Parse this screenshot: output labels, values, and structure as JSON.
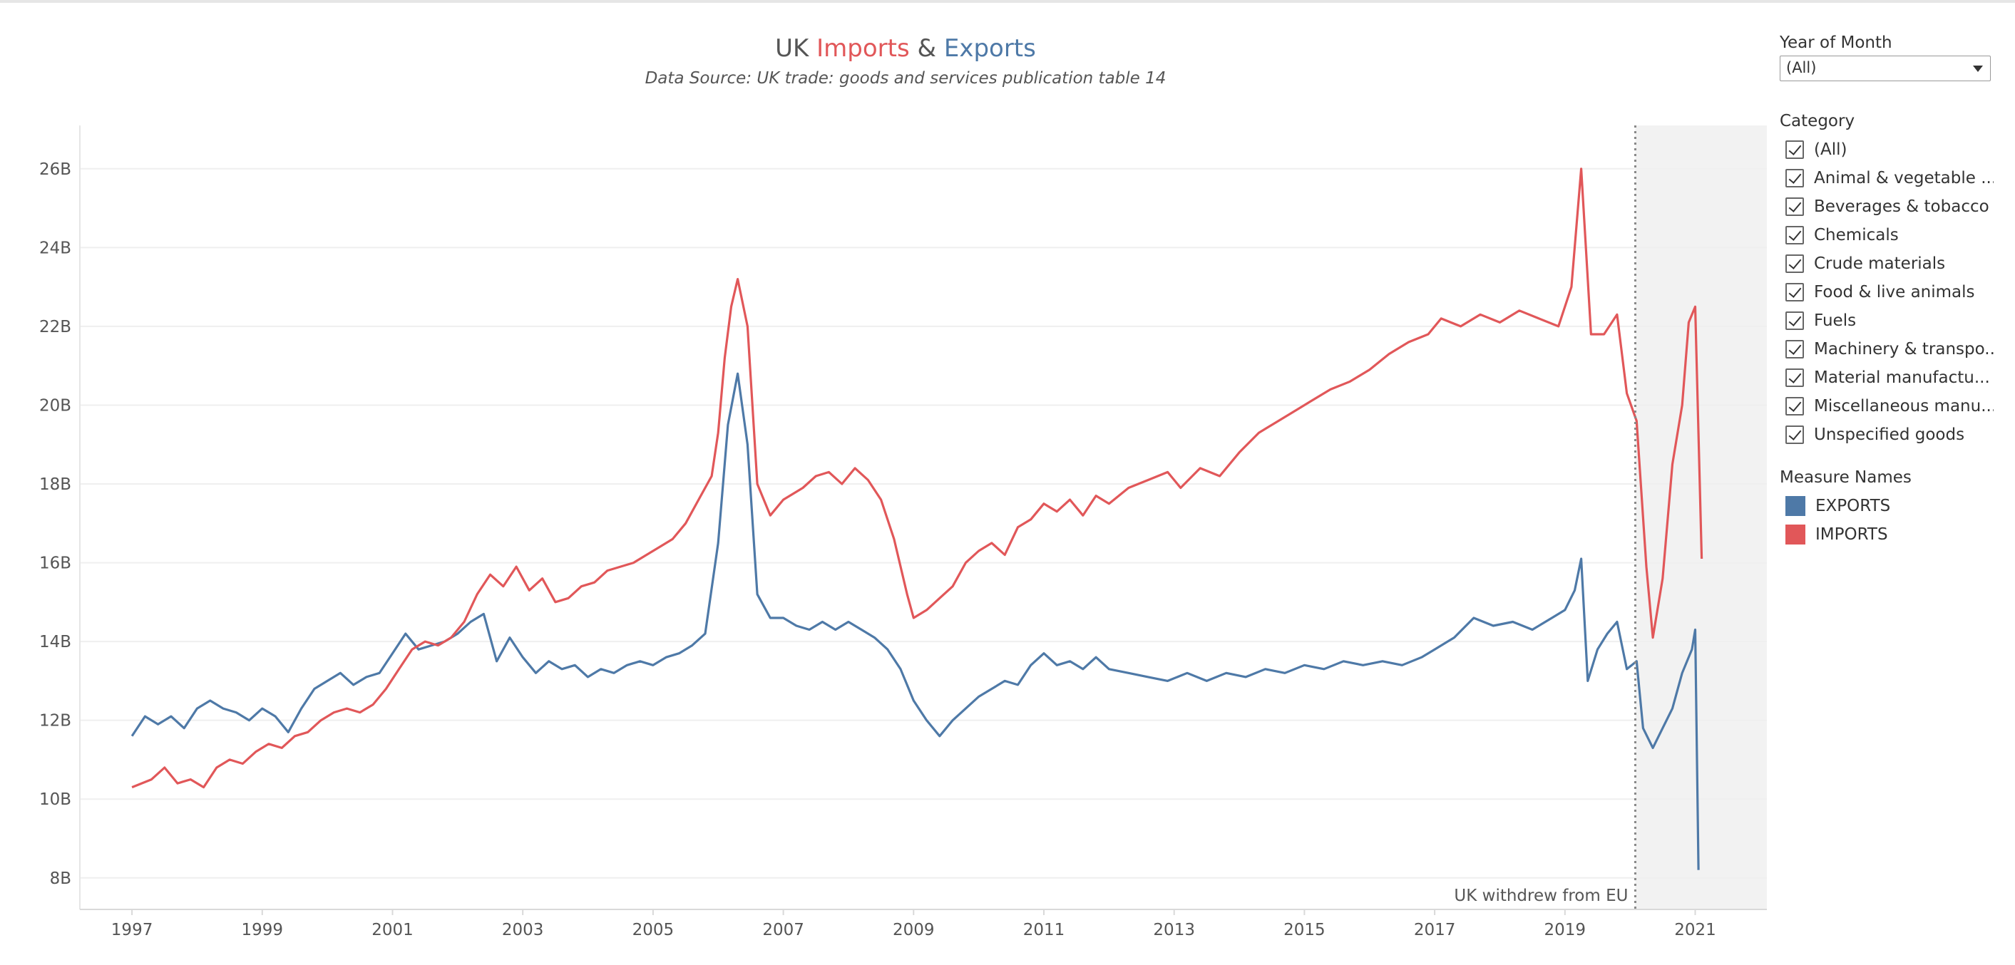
{
  "chart_data": {
    "type": "line",
    "title_parts": [
      {
        "text": "UK ",
        "color": "#555555"
      },
      {
        "text": "Imports",
        "color": "#e15759"
      },
      {
        "text": " & ",
        "color": "#555555"
      },
      {
        "text": "Exports",
        "color": "#4e79a7"
      }
    ],
    "subtitle": "Data Source: UK trade: goods and services publication table 14",
    "xlabel": "",
    "ylabel": "",
    "xlim": [
      1996.2,
      2022.1
    ],
    "ylim": [
      7.2,
      27.1
    ],
    "x_ticks": [
      1997,
      1999,
      2001,
      2003,
      2005,
      2007,
      2009,
      2011,
      2013,
      2015,
      2017,
      2019,
      2021
    ],
    "x_tick_labels": [
      "1997",
      "1999",
      "2001",
      "2003",
      "2005",
      "2007",
      "2009",
      "2011",
      "2013",
      "2015",
      "2017",
      "2019",
      "2021"
    ],
    "y_ticks": [
      8,
      10,
      12,
      14,
      16,
      18,
      20,
      22,
      24,
      26
    ],
    "y_tick_labels": [
      "8B",
      "10B",
      "12B",
      "14B",
      "16B",
      "18B",
      "20B",
      "22B",
      "24B",
      "26B"
    ],
    "grid": true,
    "annotation": {
      "x": 2020.08,
      "label": "UK withdrew from EU",
      "shade_to": 2022.1
    },
    "series": [
      {
        "name": "IMPORTS",
        "color": "#e15759",
        "points": [
          [
            1997.0,
            10.3
          ],
          [
            1997.3,
            10.5
          ],
          [
            1997.5,
            10.8
          ],
          [
            1997.7,
            10.4
          ],
          [
            1997.9,
            10.5
          ],
          [
            1998.1,
            10.3
          ],
          [
            1998.3,
            10.8
          ],
          [
            1998.5,
            11.0
          ],
          [
            1998.7,
            10.9
          ],
          [
            1998.9,
            11.2
          ],
          [
            1999.1,
            11.4
          ],
          [
            1999.3,
            11.3
          ],
          [
            1999.5,
            11.6
          ],
          [
            1999.7,
            11.7
          ],
          [
            1999.9,
            12.0
          ],
          [
            2000.1,
            12.2
          ],
          [
            2000.3,
            12.3
          ],
          [
            2000.5,
            12.2
          ],
          [
            2000.7,
            12.4
          ],
          [
            2000.9,
            12.8
          ],
          [
            2001.1,
            13.3
          ],
          [
            2001.3,
            13.8
          ],
          [
            2001.5,
            14.0
          ],
          [
            2001.7,
            13.9
          ],
          [
            2001.9,
            14.1
          ],
          [
            2002.1,
            14.5
          ],
          [
            2002.3,
            15.2
          ],
          [
            2002.5,
            15.7
          ],
          [
            2002.7,
            15.4
          ],
          [
            2002.9,
            15.9
          ],
          [
            2003.1,
            15.3
          ],
          [
            2003.3,
            15.6
          ],
          [
            2003.5,
            15.0
          ],
          [
            2003.7,
            15.1
          ],
          [
            2003.9,
            15.4
          ],
          [
            2004.1,
            15.5
          ],
          [
            2004.3,
            15.8
          ],
          [
            2004.5,
            15.9
          ],
          [
            2004.7,
            16.0
          ],
          [
            2004.9,
            16.2
          ],
          [
            2005.1,
            16.4
          ],
          [
            2005.3,
            16.6
          ],
          [
            2005.5,
            17.0
          ],
          [
            2005.7,
            17.6
          ],
          [
            2005.9,
            18.2
          ],
          [
            2006.0,
            19.3
          ],
          [
            2006.1,
            21.2
          ],
          [
            2006.2,
            22.5
          ],
          [
            2006.3,
            23.2
          ],
          [
            2006.45,
            22.0
          ],
          [
            2006.6,
            18.0
          ],
          [
            2006.8,
            17.2
          ],
          [
            2007.0,
            17.6
          ],
          [
            2007.3,
            17.9
          ],
          [
            2007.5,
            18.2
          ],
          [
            2007.7,
            18.3
          ],
          [
            2007.9,
            18.0
          ],
          [
            2008.1,
            18.4
          ],
          [
            2008.3,
            18.1
          ],
          [
            2008.5,
            17.6
          ],
          [
            2008.7,
            16.6
          ],
          [
            2008.9,
            15.2
          ],
          [
            2009.0,
            14.6
          ],
          [
            2009.2,
            14.8
          ],
          [
            2009.4,
            15.1
          ],
          [
            2009.6,
            15.4
          ],
          [
            2009.8,
            16.0
          ],
          [
            2010.0,
            16.3
          ],
          [
            2010.2,
            16.5
          ],
          [
            2010.4,
            16.2
          ],
          [
            2010.6,
            16.9
          ],
          [
            2010.8,
            17.1
          ],
          [
            2011.0,
            17.5
          ],
          [
            2011.2,
            17.3
          ],
          [
            2011.4,
            17.6
          ],
          [
            2011.6,
            17.2
          ],
          [
            2011.8,
            17.7
          ],
          [
            2012.0,
            17.5
          ],
          [
            2012.3,
            17.9
          ],
          [
            2012.6,
            18.1
          ],
          [
            2012.9,
            18.3
          ],
          [
            2013.1,
            17.9
          ],
          [
            2013.4,
            18.4
          ],
          [
            2013.7,
            18.2
          ],
          [
            2014.0,
            18.8
          ],
          [
            2014.3,
            19.3
          ],
          [
            2014.6,
            19.6
          ],
          [
            2014.9,
            19.9
          ],
          [
            2015.1,
            20.1
          ],
          [
            2015.4,
            20.4
          ],
          [
            2015.7,
            20.6
          ],
          [
            2016.0,
            20.9
          ],
          [
            2016.3,
            21.3
          ],
          [
            2016.6,
            21.6
          ],
          [
            2016.9,
            21.8
          ],
          [
            2017.1,
            22.2
          ],
          [
            2017.4,
            22.0
          ],
          [
            2017.7,
            22.3
          ],
          [
            2018.0,
            22.1
          ],
          [
            2018.3,
            22.4
          ],
          [
            2018.6,
            22.2
          ],
          [
            2018.9,
            22.0
          ],
          [
            2019.1,
            23.0
          ],
          [
            2019.25,
            26.0
          ],
          [
            2019.4,
            21.8
          ],
          [
            2019.6,
            21.8
          ],
          [
            2019.8,
            22.3
          ],
          [
            2019.95,
            20.3
          ],
          [
            2020.1,
            19.6
          ],
          [
            2020.25,
            15.9
          ],
          [
            2020.35,
            14.1
          ],
          [
            2020.5,
            15.6
          ],
          [
            2020.65,
            18.5
          ],
          [
            2020.8,
            20.0
          ],
          [
            2020.9,
            22.1
          ],
          [
            2021.0,
            22.5
          ],
          [
            2021.1,
            16.1
          ]
        ]
      },
      {
        "name": "EXPORTS",
        "color": "#4e79a7",
        "points": [
          [
            1997.0,
            11.6
          ],
          [
            1997.2,
            12.1
          ],
          [
            1997.4,
            11.9
          ],
          [
            1997.6,
            12.1
          ],
          [
            1997.8,
            11.8
          ],
          [
            1998.0,
            12.3
          ],
          [
            1998.2,
            12.5
          ],
          [
            1998.4,
            12.3
          ],
          [
            1998.6,
            12.2
          ],
          [
            1998.8,
            12.0
          ],
          [
            1999.0,
            12.3
          ],
          [
            1999.2,
            12.1
          ],
          [
            1999.4,
            11.7
          ],
          [
            1999.6,
            12.3
          ],
          [
            1999.8,
            12.8
          ],
          [
            2000.0,
            13.0
          ],
          [
            2000.2,
            13.2
          ],
          [
            2000.4,
            12.9
          ],
          [
            2000.6,
            13.1
          ],
          [
            2000.8,
            13.2
          ],
          [
            2001.0,
            13.7
          ],
          [
            2001.2,
            14.2
          ],
          [
            2001.4,
            13.8
          ],
          [
            2001.6,
            13.9
          ],
          [
            2001.8,
            14.0
          ],
          [
            2002.0,
            14.2
          ],
          [
            2002.2,
            14.5
          ],
          [
            2002.4,
            14.7
          ],
          [
            2002.6,
            13.5
          ],
          [
            2002.8,
            14.1
          ],
          [
            2003.0,
            13.6
          ],
          [
            2003.2,
            13.2
          ],
          [
            2003.4,
            13.5
          ],
          [
            2003.6,
            13.3
          ],
          [
            2003.8,
            13.4
          ],
          [
            2004.0,
            13.1
          ],
          [
            2004.2,
            13.3
          ],
          [
            2004.4,
            13.2
          ],
          [
            2004.6,
            13.4
          ],
          [
            2004.8,
            13.5
          ],
          [
            2005.0,
            13.4
          ],
          [
            2005.2,
            13.6
          ],
          [
            2005.4,
            13.7
          ],
          [
            2005.6,
            13.9
          ],
          [
            2005.8,
            14.2
          ],
          [
            2006.0,
            16.5
          ],
          [
            2006.15,
            19.5
          ],
          [
            2006.3,
            20.8
          ],
          [
            2006.45,
            19.0
          ],
          [
            2006.6,
            15.2
          ],
          [
            2006.8,
            14.6
          ],
          [
            2007.0,
            14.6
          ],
          [
            2007.2,
            14.4
          ],
          [
            2007.4,
            14.3
          ],
          [
            2007.6,
            14.5
          ],
          [
            2007.8,
            14.3
          ],
          [
            2008.0,
            14.5
          ],
          [
            2008.2,
            14.3
          ],
          [
            2008.4,
            14.1
          ],
          [
            2008.6,
            13.8
          ],
          [
            2008.8,
            13.3
          ],
          [
            2009.0,
            12.5
          ],
          [
            2009.2,
            12.0
          ],
          [
            2009.4,
            11.6
          ],
          [
            2009.6,
            12.0
          ],
          [
            2009.8,
            12.3
          ],
          [
            2010.0,
            12.6
          ],
          [
            2010.2,
            12.8
          ],
          [
            2010.4,
            13.0
          ],
          [
            2010.6,
            12.9
          ],
          [
            2010.8,
            13.4
          ],
          [
            2011.0,
            13.7
          ],
          [
            2011.2,
            13.4
          ],
          [
            2011.4,
            13.5
          ],
          [
            2011.6,
            13.3
          ],
          [
            2011.8,
            13.6
          ],
          [
            2012.0,
            13.3
          ],
          [
            2012.3,
            13.2
          ],
          [
            2012.6,
            13.1
          ],
          [
            2012.9,
            13.0
          ],
          [
            2013.2,
            13.2
          ],
          [
            2013.5,
            13.0
          ],
          [
            2013.8,
            13.2
          ],
          [
            2014.1,
            13.1
          ],
          [
            2014.4,
            13.3
          ],
          [
            2014.7,
            13.2
          ],
          [
            2015.0,
            13.4
          ],
          [
            2015.3,
            13.3
          ],
          [
            2015.6,
            13.5
          ],
          [
            2015.9,
            13.4
          ],
          [
            2016.2,
            13.5
          ],
          [
            2016.5,
            13.4
          ],
          [
            2016.8,
            13.6
          ],
          [
            2017.0,
            13.8
          ],
          [
            2017.3,
            14.1
          ],
          [
            2017.6,
            14.6
          ],
          [
            2017.9,
            14.4
          ],
          [
            2018.2,
            14.5
          ],
          [
            2018.5,
            14.3
          ],
          [
            2018.8,
            14.6
          ],
          [
            2019.0,
            14.8
          ],
          [
            2019.15,
            15.3
          ],
          [
            2019.25,
            16.1
          ],
          [
            2019.35,
            13.0
          ],
          [
            2019.5,
            13.8
          ],
          [
            2019.65,
            14.2
          ],
          [
            2019.8,
            14.5
          ],
          [
            2019.95,
            13.3
          ],
          [
            2020.1,
            13.5
          ],
          [
            2020.2,
            11.8
          ],
          [
            2020.35,
            11.3
          ],
          [
            2020.5,
            11.8
          ],
          [
            2020.65,
            12.3
          ],
          [
            2020.8,
            13.2
          ],
          [
            2020.95,
            13.8
          ],
          [
            2021.0,
            14.3
          ],
          [
            2021.05,
            8.2
          ]
        ]
      }
    ]
  },
  "filters": {
    "year_of_month": {
      "title": "Year of Month",
      "value": "(All)"
    },
    "category": {
      "title": "Category",
      "items": [
        {
          "label": "(All)"
        },
        {
          "label": "Animal & vegetable ..."
        },
        {
          "label": "Beverages & tobacco"
        },
        {
          "label": "Chemicals"
        },
        {
          "label": "Crude materials"
        },
        {
          "label": "Food & live animals"
        },
        {
          "label": "Fuels"
        },
        {
          "label": "Machinery & transpo..."
        },
        {
          "label": "Material manufactu..."
        },
        {
          "label": "Miscellaneous manu..."
        },
        {
          "label": "Unspecified goods"
        }
      ]
    }
  },
  "legend": {
    "title": "Measure Names",
    "items": [
      {
        "label": "EXPORTS",
        "color": "#4e79a7"
      },
      {
        "label": "IMPORTS",
        "color": "#e15759"
      }
    ]
  }
}
